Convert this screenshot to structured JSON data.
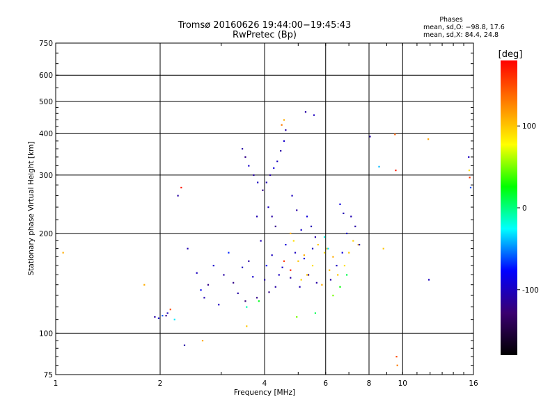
{
  "chart_data": {
    "type": "scatter",
    "title": "Tromsø 20160626 19:44:00−19:45:43",
    "subtitle": "RwPretec (Bp)",
    "xlabel": "Frequency [MHz]",
    "ylabel": "Stationary phase Virtual Height [km]",
    "x_scale": "log",
    "y_scale": "log",
    "xlim": [
      1,
      16
    ],
    "ylim": [
      75,
      750
    ],
    "x_ticks": [
      1,
      2,
      4,
      6,
      8,
      10,
      16
    ],
    "y_ticks": [
      75,
      100,
      200,
      300,
      400,
      500,
      600,
      750
    ],
    "grid": true,
    "stats": {
      "heading": "Phases",
      "line_o": "mean, sd,O: −98.8, 17.6",
      "line_x": "mean, sd,X:  84.4, 24.8"
    },
    "colorbar": {
      "label": "[deg]",
      "range": [
        -180,
        180
      ],
      "ticks": [
        100,
        0,
        -100
      ],
      "colormap": "rainbow",
      "stops": [
        "#000000",
        "#3a0070",
        "#0000ff",
        "#00ffff",
        "#00ff00",
        "#ffff00",
        "#ff7f00",
        "#ff0000"
      ]
    },
    "series": [
      {
        "points": [
          [
            1.93,
            112,
            -110
          ],
          [
            1.98,
            111,
            -95
          ],
          [
            2.03,
            113,
            -60
          ],
          [
            2.08,
            113,
            -120
          ],
          [
            2.1,
            115,
            -100
          ],
          [
            2.14,
            118,
            150
          ],
          [
            2.2,
            110,
            -30
          ],
          [
            2.35,
            92,
            -110
          ],
          [
            2.4,
            180,
            -105
          ],
          [
            2.55,
            152,
            -100
          ],
          [
            2.62,
            135,
            -80
          ],
          [
            2.68,
            128,
            -105
          ],
          [
            2.75,
            140,
            -120
          ],
          [
            2.85,
            160,
            -95
          ],
          [
            2.95,
            122,
            -100
          ],
          [
            3.05,
            150,
            -110
          ],
          [
            3.15,
            175,
            -70
          ],
          [
            3.25,
            142,
            -120
          ],
          [
            3.35,
            132,
            -110
          ],
          [
            3.45,
            158,
            -100
          ],
          [
            3.52,
            125,
            -125
          ],
          [
            3.6,
            165,
            -110
          ],
          [
            3.7,
            148,
            -95
          ],
          [
            3.8,
            128,
            -120
          ],
          [
            3.9,
            190,
            -105
          ],
          [
            4.0,
            145,
            -110
          ],
          [
            4.05,
            160,
            -80
          ],
          [
            4.12,
            133,
            -120
          ],
          [
            4.2,
            172,
            -100
          ],
          [
            4.3,
            138,
            -110
          ],
          [
            4.4,
            150,
            -100
          ],
          [
            4.5,
            158,
            -95
          ],
          [
            4.6,
            185,
            -90
          ],
          [
            4.75,
            147,
            -110
          ],
          [
            4.9,
            175,
            -100
          ],
          [
            5.05,
            138,
            -105
          ],
          [
            5.2,
            168,
            -90
          ],
          [
            5.35,
            150,
            -120
          ],
          [
            5.5,
            180,
            -100
          ],
          [
            5.65,
            142,
            -110
          ],
          [
            3.45,
            360,
            -110
          ],
          [
            3.52,
            340,
            -120
          ],
          [
            3.6,
            320,
            -95
          ],
          [
            3.72,
            300,
            -110
          ],
          [
            3.82,
            285,
            -100
          ],
          [
            3.95,
            270,
            -120
          ],
          [
            4.05,
            285,
            -105
          ],
          [
            4.15,
            300,
            -110
          ],
          [
            4.25,
            315,
            -90
          ],
          [
            4.35,
            330,
            -100
          ],
          [
            4.45,
            355,
            -110
          ],
          [
            4.55,
            380,
            -95
          ],
          [
            4.6,
            410,
            -110
          ],
          [
            4.1,
            240,
            -100
          ],
          [
            4.2,
            225,
            -110
          ],
          [
            4.3,
            210,
            -120
          ],
          [
            3.8,
            225,
            -105
          ],
          [
            4.8,
            260,
            -100
          ],
          [
            4.95,
            235,
            -110
          ],
          [
            5.1,
            205,
            -95
          ],
          [
            5.3,
            225,
            -90
          ],
          [
            5.45,
            210,
            -105
          ],
          [
            5.6,
            195,
            -110
          ],
          [
            5.25,
            465,
            -110
          ],
          [
            5.55,
            455,
            -100
          ],
          [
            4.75,
            200,
            110
          ],
          [
            4.85,
            190,
            90
          ],
          [
            5.0,
            165,
            100
          ],
          [
            5.1,
            145,
            95
          ],
          [
            5.2,
            172,
            110
          ],
          [
            5.3,
            150,
            100
          ],
          [
            5.5,
            160,
            90
          ],
          [
            5.7,
            185,
            100
          ],
          [
            5.85,
            140,
            110
          ],
          [
            5.95,
            175,
            95
          ],
          [
            6.05,
            180,
            100
          ],
          [
            6.15,
            155,
            105
          ],
          [
            6.3,
            170,
            110
          ],
          [
            6.5,
            150,
            100
          ],
          [
            6.8,
            160,
            90
          ],
          [
            7.0,
            175,
            100
          ],
          [
            7.2,
            190,
            95
          ],
          [
            7.45,
            185,
            105
          ],
          [
            6.2,
            145,
            -110
          ],
          [
            6.45,
            160,
            -100
          ],
          [
            6.7,
            175,
            -90
          ],
          [
            6.9,
            200,
            -100
          ],
          [
            7.1,
            225,
            -105
          ],
          [
            7.3,
            210,
            -110
          ],
          [
            7.5,
            185,
            -100
          ],
          [
            6.6,
            245,
            -90
          ],
          [
            6.75,
            230,
            -105
          ],
          [
            6.9,
            150,
            10
          ],
          [
            6.6,
            138,
            25
          ],
          [
            5.95,
            195,
            -20
          ],
          [
            6.1,
            180,
            -30
          ],
          [
            5.6,
            115,
            10
          ],
          [
            6.3,
            130,
            50
          ],
          [
            4.95,
            112,
            50
          ],
          [
            3.55,
            120,
            -10
          ],
          [
            3.85,
            125,
            20
          ],
          [
            4.55,
            440,
            110
          ],
          [
            4.48,
            425,
            130
          ],
          [
            1.05,
            175,
            110
          ],
          [
            1.8,
            140,
            110
          ],
          [
            2.65,
            95,
            110
          ],
          [
            2.3,
            275,
            170
          ],
          [
            2.25,
            260,
            -110
          ],
          [
            8.05,
            392,
            -110
          ],
          [
            8.55,
            318,
            -40
          ],
          [
            9.5,
            398,
            140
          ],
          [
            9.55,
            310,
            170
          ],
          [
            9.6,
            85,
            150
          ],
          [
            9.65,
            80,
            130
          ],
          [
            8.8,
            180,
            100
          ],
          [
            11.85,
            385,
            115
          ],
          [
            11.9,
            145,
            -100
          ],
          [
            15.5,
            340,
            -100
          ],
          [
            15.55,
            310,
            90
          ],
          [
            15.6,
            295,
            160
          ],
          [
            15.7,
            275,
            -60
          ],
          [
            3.55,
            105,
            100
          ],
          [
            4.75,
            155,
            165
          ],
          [
            4.55,
            165,
            160
          ]
        ]
      }
    ]
  }
}
